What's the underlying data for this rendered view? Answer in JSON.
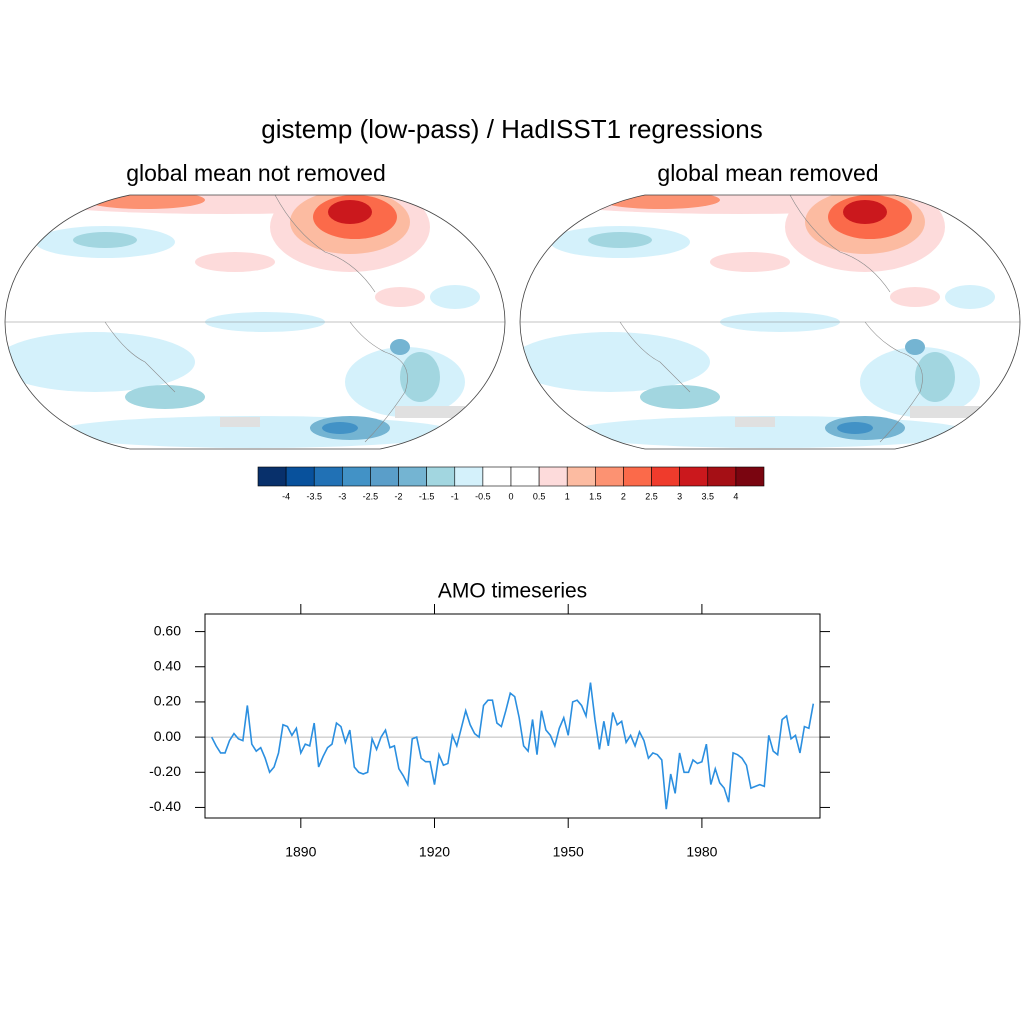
{
  "title": "gistemp  (low-pass) / HadISST1   regressions",
  "maps": [
    {
      "title": "global mean not removed"
    },
    {
      "title": "global mean removed"
    }
  ],
  "colorbar": {
    "colors": [
      "#08306b",
      "#08519c",
      "#2171b5",
      "#4292c6",
      "#5a9ec9",
      "#74b4d2",
      "#a2d6e0",
      "#d4f1fb",
      "#ffffff",
      "#ffffff",
      "#fddbdb",
      "#fcbba1",
      "#fc9272",
      "#fb6a4a",
      "#ef3b2c",
      "#cb181d",
      "#a50f15",
      "#7a0510"
    ],
    "ticks": [
      -4,
      -3.5,
      -3,
      -2.5,
      -2,
      -1.5,
      -1,
      -0.5,
      0,
      0.5,
      1,
      1.5,
      2,
      2.5,
      3,
      3.5,
      4
    ]
  },
  "chart_data": {
    "type": "line",
    "title": "AMO timeseries",
    "x": [
      1870,
      1871,
      1872,
      1873,
      1874,
      1875,
      1876,
      1877,
      1878,
      1879,
      1880,
      1881,
      1882,
      1883,
      1884,
      1885,
      1886,
      1887,
      1888,
      1889,
      1890,
      1891,
      1892,
      1893,
      1894,
      1895,
      1896,
      1897,
      1898,
      1899,
      1900,
      1901,
      1902,
      1903,
      1904,
      1905,
      1906,
      1907,
      1908,
      1909,
      1910,
      1911,
      1912,
      1913,
      1914,
      1915,
      1916,
      1917,
      1918,
      1919,
      1920,
      1921,
      1922,
      1923,
      1924,
      1925,
      1926,
      1927,
      1928,
      1929,
      1930,
      1931,
      1932,
      1933,
      1934,
      1935,
      1936,
      1937,
      1938,
      1939,
      1940,
      1941,
      1942,
      1943,
      1944,
      1945,
      1946,
      1947,
      1948,
      1949,
      1950,
      1951,
      1952,
      1953,
      1954,
      1955,
      1956,
      1957,
      1958,
      1959,
      1960,
      1961,
      1962,
      1963,
      1964,
      1965,
      1966,
      1967,
      1968,
      1969,
      1970,
      1971,
      1972,
      1973,
      1974,
      1975,
      1976,
      1977,
      1978,
      1979,
      1980,
      1981,
      1982,
      1983,
      1984,
      1985,
      1986,
      1987,
      1988,
      1989,
      1990,
      1991,
      1992,
      1993,
      1994,
      1995,
      1996,
      1997,
      1998,
      1999,
      2000,
      2001,
      2002,
      2003,
      2004,
      2005
    ],
    "series": [
      {
        "name": "AMO",
        "color": "#2b8fe0",
        "values": [
          0.0,
          -0.05,
          -0.09,
          -0.09,
          -0.02,
          0.02,
          -0.01,
          -0.02,
          0.18,
          -0.04,
          -0.08,
          -0.06,
          -0.12,
          -0.2,
          -0.17,
          -0.09,
          0.07,
          0.06,
          0.01,
          0.05,
          -0.09,
          -0.04,
          -0.05,
          0.08,
          -0.17,
          -0.11,
          -0.06,
          -0.04,
          0.08,
          0.06,
          -0.03,
          0.04,
          -0.17,
          -0.2,
          -0.21,
          -0.2,
          -0.01,
          -0.07,
          0.0,
          0.04,
          -0.06,
          -0.05,
          -0.18,
          -0.22,
          -0.27,
          -0.01,
          0.0,
          -0.12,
          -0.14,
          -0.14,
          -0.27,
          -0.1,
          -0.16,
          -0.15,
          0.01,
          -0.05,
          0.05,
          0.15,
          0.07,
          0.02,
          0.0,
          0.18,
          0.21,
          0.21,
          0.08,
          0.06,
          0.15,
          0.25,
          0.23,
          0.11,
          -0.05,
          -0.08,
          0.1,
          -0.1,
          0.15,
          0.04,
          0.01,
          -0.05,
          0.05,
          0.11,
          0.01,
          0.2,
          0.21,
          0.18,
          0.12,
          0.31,
          0.1,
          -0.07,
          0.09,
          -0.05,
          0.14,
          0.07,
          0.09,
          -0.03,
          0.01,
          -0.05,
          0.03,
          -0.02,
          -0.12,
          -0.09,
          -0.1,
          -0.13,
          -0.41,
          -0.21,
          -0.32,
          -0.09,
          -0.2,
          -0.2,
          -0.13,
          -0.15,
          -0.14,
          -0.04,
          -0.27,
          -0.18,
          -0.26,
          -0.29,
          -0.37,
          -0.09,
          -0.1,
          -0.12,
          -0.16,
          -0.29,
          -0.28,
          -0.27,
          -0.28,
          0.01,
          -0.08,
          -0.1,
          0.1,
          0.12,
          -0.01,
          0.01,
          -0.09,
          0.06,
          0.05,
          0.19
        ]
      }
    ],
    "xlim": [
      1868.5,
      2006.5
    ],
    "xticks": [
      1890,
      1920,
      1950,
      1980
    ],
    "ylim": [
      -0.46,
      0.7
    ],
    "yticks": [
      {
        "value": -0.4,
        "label": "-0.40"
      },
      {
        "value": -0.2,
        "label": "-0.20"
      },
      {
        "value": 0,
        "label": "0.00"
      },
      {
        "value": 0.2,
        "label": "0.20"
      },
      {
        "value": 0.4,
        "label": "0.40"
      },
      {
        "value": 0.6,
        "label": "0.60"
      }
    ],
    "reference_line": 0
  }
}
